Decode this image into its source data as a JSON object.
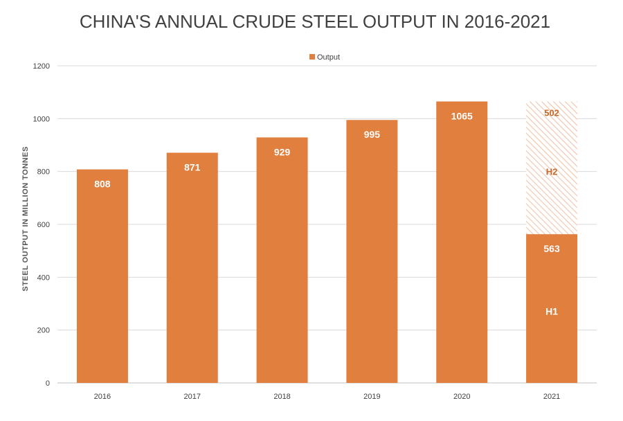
{
  "chart_data": {
    "type": "bar",
    "title": "CHINA'S ANNUAL CRUDE STEEL OUTPUT IN 2016-2021",
    "ylabel": "STEEL OUTPUT IN MILLION TONNES",
    "xlabel": "",
    "ylim": [
      0,
      1200
    ],
    "yticks": [
      "0",
      "200",
      "400",
      "600",
      "800",
      "1000",
      "1200"
    ],
    "categories": [
      "2016",
      "2017",
      "2018",
      "2019",
      "2020",
      "2021"
    ],
    "series": [
      {
        "name": "Output",
        "values": [
          808,
          871,
          929,
          995,
          1065,
          563
        ]
      }
    ],
    "labels": [
      "808",
      "871",
      "929",
      "995",
      "1065",
      "563"
    ],
    "stacked_2021": {
      "h1": {
        "label": "H1",
        "value": 563,
        "value_label": "563"
      },
      "h2": {
        "label": "H2",
        "value": 502,
        "value_label": "502",
        "pattern": "hatched"
      }
    },
    "legend": {
      "position": "top",
      "entry": "Output"
    },
    "grid": true,
    "colors": {
      "bar": "#e07f3e",
      "hatch": "#e9a77c",
      "h2_text": "#c8682a",
      "grid": "#d9d9d9"
    }
  }
}
